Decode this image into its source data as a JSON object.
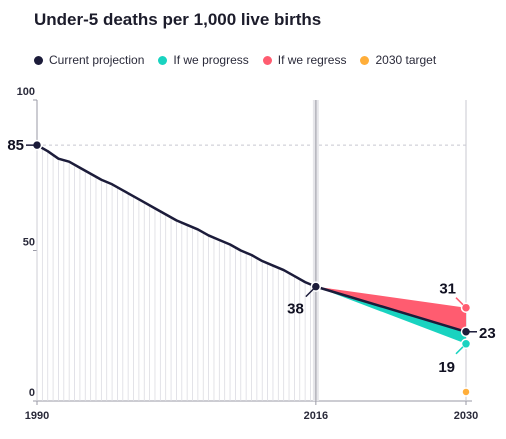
{
  "chart_data": {
    "type": "line",
    "title": "Under-5 deaths per 1,000 live births",
    "xlim": [
      1990,
      2030
    ],
    "ylim": [
      0,
      100
    ],
    "x_ticks": [
      {
        "value": 1990,
        "label": "1990"
      },
      {
        "value": 2016,
        "label": "2016"
      },
      {
        "value": 2030,
        "label": "2030"
      }
    ],
    "y_ticks": [
      {
        "value": 0,
        "label": "0"
      },
      {
        "value": 50,
        "label": "50"
      },
      {
        "value": 100,
        "label": "100"
      }
    ],
    "series": [
      {
        "name": "Current projection",
        "color": "#1c1c3a",
        "x": [
          1990,
          1991,
          1992,
          1993,
          1994,
          1995,
          1996,
          1997,
          1998,
          1999,
          2000,
          2001,
          2002,
          2003,
          2004,
          2005,
          2006,
          2007,
          2008,
          2009,
          2010,
          2011,
          2012,
          2013,
          2014,
          2015,
          2016,
          2030
        ],
        "y": [
          85,
          83,
          80.5,
          79.5,
          77.5,
          75.5,
          73.5,
          72,
          70,
          68,
          66,
          64,
          62,
          60,
          58.5,
          57,
          55,
          53.5,
          52,
          50,
          48.5,
          46.5,
          45,
          43.5,
          41.5,
          39.5,
          38,
          23
        ]
      },
      {
        "name": "If we progress",
        "color": "#19d3c0",
        "x": [
          2016,
          2030
        ],
        "y": [
          38,
          19
        ]
      },
      {
        "name": "If we regress",
        "color": "#ff5c70",
        "x": [
          2016,
          2030
        ],
        "y": [
          38,
          31
        ]
      },
      {
        "name": "2030 target",
        "color": "#ffae3a",
        "x": [
          2030
        ],
        "y": [
          3
        ]
      }
    ],
    "annotations": [
      {
        "label": "85",
        "x": 1990,
        "y": 85
      },
      {
        "label": "38",
        "x": 2016,
        "y": 38
      },
      {
        "label": "31",
        "x": 2030,
        "y": 31
      },
      {
        "label": "23",
        "x": 2030,
        "y": 23
      },
      {
        "label": "19",
        "x": 2030,
        "y": 19
      }
    ],
    "reference_lines": [
      {
        "x": 2016
      },
      {
        "y": 85
      }
    ],
    "legend_position": "top-left",
    "grid": true
  }
}
